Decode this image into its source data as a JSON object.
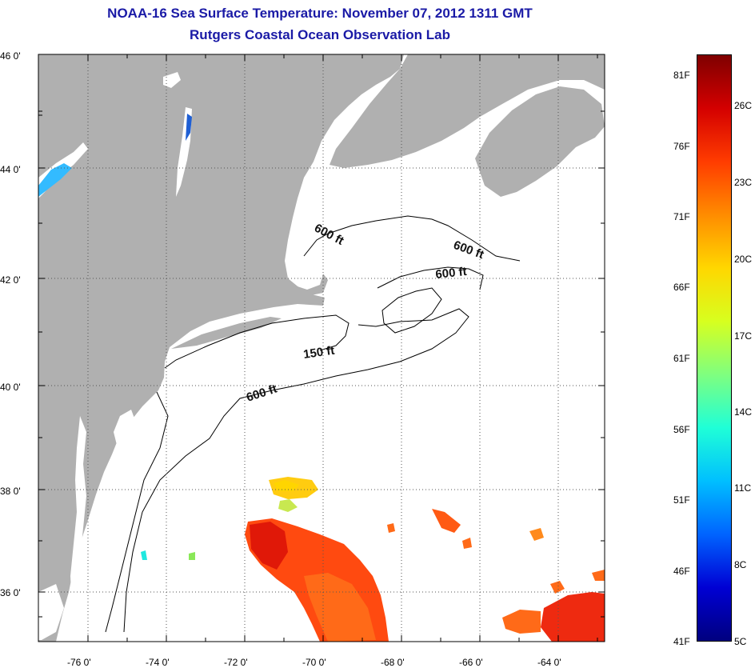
{
  "title": "NOAA-16 Sea Surface Temperature:  November 07, 2012 1311 GMT",
  "subtitle": "Rutgers Coastal Ocean Observation Lab",
  "map": {
    "lat_labels": [
      "46 0'",
      "44 0'",
      "42 0'",
      "40 0'",
      "38 0'",
      "36 0'"
    ],
    "lon_labels": [
      "-76 0'",
      "-74 0'",
      "-72 0'",
      "-70 0'",
      "-68 0'",
      "-66 0'",
      "-64 0'"
    ],
    "contour_labels": [
      "600 ft",
      "600 ft",
      "600 ft",
      "150 ft",
      "600 ft"
    ],
    "land_color": "#b0b0b0",
    "ocean_color": "#ffffff"
  },
  "colorbar": {
    "fahrenheit_labels": [
      "81F",
      "76F",
      "71F",
      "66F",
      "61F",
      "56F",
      "51F",
      "46F",
      "41F"
    ],
    "celsius_labels": [
      "26C",
      "23C",
      "20C",
      "17C",
      "14C",
      "11C",
      "8C",
      "5C"
    ],
    "colors": [
      "#7f0000",
      "#d40000",
      "#ff3c00",
      "#ff8c00",
      "#ffd700",
      "#d7ff1f",
      "#7fff7f",
      "#1fffd7",
      "#00bfff",
      "#0064ff",
      "#0000d4",
      "#00007f"
    ]
  }
}
